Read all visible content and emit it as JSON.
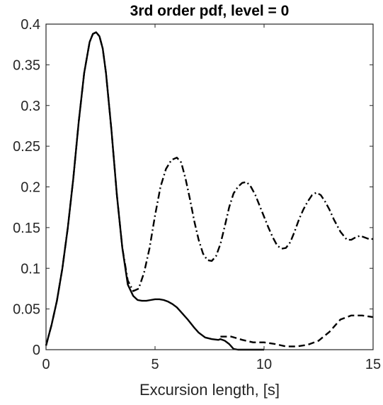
{
  "chart_data": {
    "type": "line",
    "title": "3rd order pdf, level = 0",
    "xlabel": "Excursion length, [s]",
    "ylabel": "",
    "xlim": [
      0,
      15
    ],
    "ylim": [
      0,
      0.4
    ],
    "xticks": [
      0,
      5,
      10,
      15
    ],
    "yticks": [
      0,
      0.05,
      0.1,
      0.15,
      0.2,
      0.25,
      0.3,
      0.35,
      0.4
    ],
    "xtick_labels": [
      "0",
      "5",
      "10",
      "15"
    ],
    "ytick_labels": [
      "0",
      "0.05",
      "0.1",
      "0.15",
      "0.2",
      "0.25",
      "0.3",
      "0.35",
      "0.4"
    ],
    "grid": false,
    "box": true,
    "series": [
      {
        "style": "solid",
        "color": "#000000",
        "x": [
          0,
          0.25,
          0.5,
          0.75,
          1.0,
          1.25,
          1.5,
          1.75,
          2.0,
          2.15,
          2.3,
          2.45,
          2.6,
          2.75,
          3.0,
          3.25,
          3.5,
          3.75,
          4.0,
          4.2,
          4.4,
          4.6,
          4.8,
          5.0,
          5.2,
          5.4,
          5.6,
          5.8,
          6.0,
          6.2,
          6.5,
          6.8,
          7.0,
          7.3,
          7.6,
          7.9,
          8.0,
          8.2,
          8.4,
          8.5,
          8.6,
          8.8,
          9.0,
          9.5,
          10.0
        ],
        "y": [
          0.005,
          0.03,
          0.06,
          0.1,
          0.15,
          0.21,
          0.28,
          0.34,
          0.378,
          0.388,
          0.39,
          0.385,
          0.37,
          0.34,
          0.27,
          0.19,
          0.125,
          0.08,
          0.066,
          0.061,
          0.06,
          0.06,
          0.061,
          0.062,
          0.062,
          0.061,
          0.059,
          0.056,
          0.052,
          0.046,
          0.037,
          0.027,
          0.021,
          0.015,
          0.013,
          0.012,
          0.013,
          0.011,
          0.007,
          0.004,
          0.001,
          0.0,
          0.0,
          0.0,
          0.0
        ]
      },
      {
        "style": "dashed",
        "color": "#000000",
        "x": [
          8.0,
          8.5,
          9.0,
          9.5,
          10.0,
          10.5,
          11.0,
          11.5,
          12.0,
          12.5,
          13.0,
          13.5,
          14.0,
          14.5,
          15.0
        ],
        "y": [
          0.016,
          0.016,
          0.012,
          0.009,
          0.009,
          0.007,
          0.004,
          0.004,
          0.006,
          0.011,
          0.022,
          0.037,
          0.042,
          0.042,
          0.04
        ]
      },
      {
        "style": "dashdot",
        "color": "#000000",
        "x": [
          0,
          0.25,
          0.5,
          0.75,
          1.0,
          1.25,
          1.5,
          1.75,
          2.0,
          2.15,
          2.3,
          2.45,
          2.6,
          2.75,
          3.0,
          3.25,
          3.5,
          3.75,
          4.0,
          4.25,
          4.5,
          4.75,
          5.0,
          5.25,
          5.5,
          5.75,
          6.0,
          6.2,
          6.4,
          6.6,
          6.8,
          7.0,
          7.2,
          7.4,
          7.6,
          7.8,
          8.0,
          8.2,
          8.4,
          8.6,
          8.8,
          9.0,
          9.2,
          9.4,
          9.6,
          9.9,
          10.2,
          10.4,
          10.6,
          10.8,
          11.0,
          11.2,
          11.4,
          11.6,
          11.8,
          12.0,
          12.2,
          12.4,
          12.6,
          12.8,
          13.0,
          13.2,
          13.5,
          13.8,
          14.0,
          14.2,
          14.4,
          14.6,
          14.8,
          15.0
        ],
        "y": [
          0.005,
          0.03,
          0.06,
          0.1,
          0.15,
          0.21,
          0.28,
          0.34,
          0.378,
          0.388,
          0.39,
          0.385,
          0.37,
          0.34,
          0.27,
          0.19,
          0.125,
          0.085,
          0.072,
          0.075,
          0.095,
          0.125,
          0.165,
          0.2,
          0.222,
          0.233,
          0.236,
          0.23,
          0.21,
          0.185,
          0.158,
          0.135,
          0.118,
          0.11,
          0.109,
          0.115,
          0.13,
          0.152,
          0.175,
          0.192,
          0.2,
          0.205,
          0.206,
          0.2,
          0.19,
          0.17,
          0.15,
          0.138,
          0.128,
          0.124,
          0.125,
          0.132,
          0.145,
          0.16,
          0.172,
          0.182,
          0.19,
          0.193,
          0.19,
          0.182,
          0.172,
          0.16,
          0.145,
          0.135,
          0.135,
          0.138,
          0.14,
          0.138,
          0.136,
          0.136
        ]
      }
    ]
  }
}
